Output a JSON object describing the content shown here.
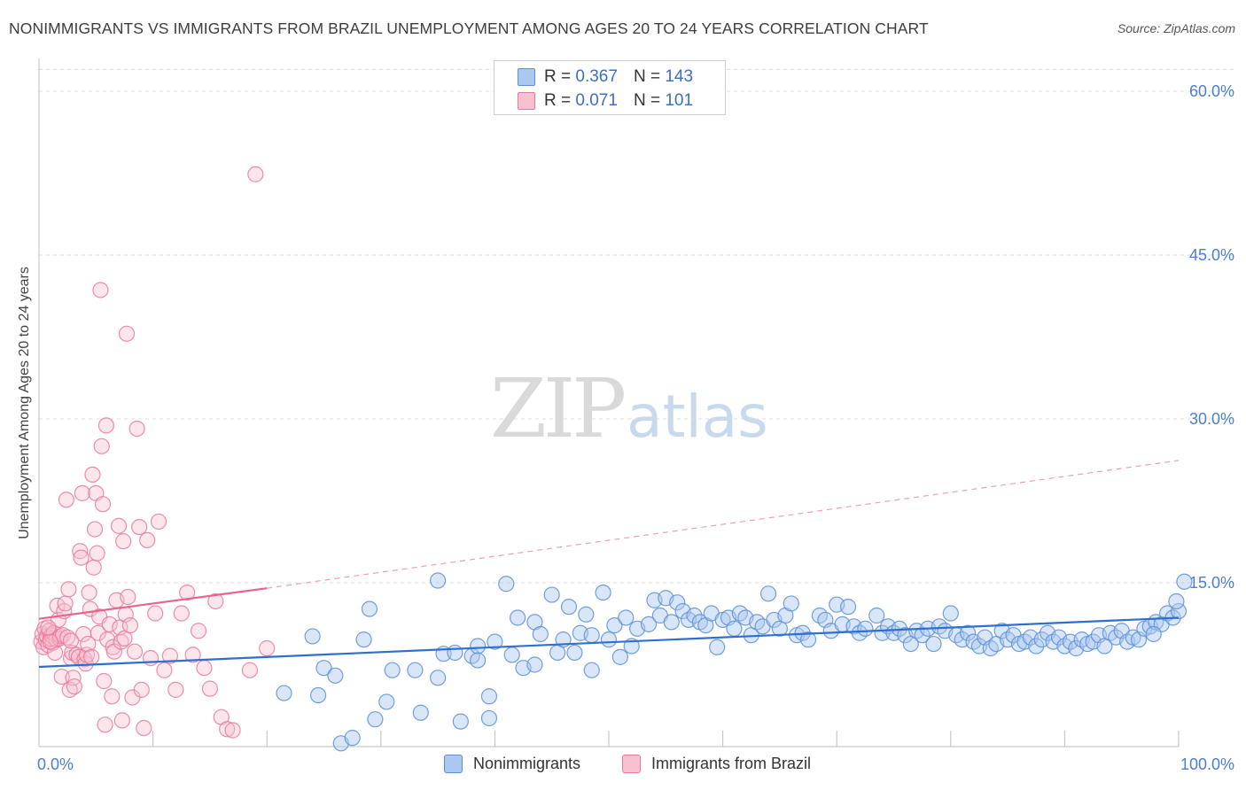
{
  "header": {
    "title": "NONIMMIGRANTS VS IMMIGRANTS FROM BRAZIL UNEMPLOYMENT AMONG AGES 20 TO 24 YEARS CORRELATION CHART",
    "source": "Source: ZipAtlas.com"
  },
  "watermark": {
    "zip": "ZIP",
    "atlas": "atlas"
  },
  "legend": {
    "r_label": "R =",
    "n_label": "N =",
    "entries": [
      {
        "name": "Nonimmigrants",
        "r": "0.367",
        "n": "143",
        "fill": "#aac8f0",
        "stroke": "#5b8fd6"
      },
      {
        "name": "Immigrants from Brazil",
        "r": "0.071",
        "n": "101",
        "fill": "#f7c0d0",
        "stroke": "#e87a9c"
      }
    ]
  },
  "chart_data": {
    "type": "scatter",
    "title": "NONIMMIGRANTS VS IMMIGRANTS FROM BRAZIL UNEMPLOYMENT AMONG AGES 20 TO 24 YEARS CORRELATION CHART",
    "xlabel": "",
    "ylabel": "Unemployment Among Ages 20 to 24 years",
    "xlim": [
      0,
      100
    ],
    "ylim": [
      0,
      63
    ],
    "x_tick_labels": [
      "0.0%",
      "100.0%"
    ],
    "y_ticks": [
      15,
      30,
      45,
      60
    ],
    "y_tick_labels": [
      "15.0%",
      "30.0%",
      "45.0%",
      "60.0%"
    ],
    "grid": true,
    "series": [
      {
        "name": "Nonimmigrants",
        "color": "#5b8fd6",
        "trend": {
          "x0": 0,
          "y0": 7.3,
          "x1": 100,
          "y1": 11.8,
          "style": "solid"
        },
        "points": [
          [
            21.5,
            4.9
          ],
          [
            24.0,
            10.1
          ],
          [
            25.0,
            7.2
          ],
          [
            24.5,
            4.7
          ],
          [
            26.0,
            6.5
          ],
          [
            26.5,
            0.3
          ],
          [
            27.5,
            0.8
          ],
          [
            28.5,
            9.8
          ],
          [
            29.0,
            12.6
          ],
          [
            29.5,
            2.5
          ],
          [
            30.5,
            4.1
          ],
          [
            31.0,
            7.0
          ],
          [
            33.0,
            7.0
          ],
          [
            33.5,
            3.1
          ],
          [
            35.0,
            15.2
          ],
          [
            35.0,
            6.3
          ],
          [
            35.5,
            8.5
          ],
          [
            36.5,
            8.6
          ],
          [
            37.0,
            2.3
          ],
          [
            38.0,
            8.3
          ],
          [
            38.5,
            9.2
          ],
          [
            38.5,
            7.9
          ],
          [
            39.5,
            4.6
          ],
          [
            39.5,
            2.6
          ],
          [
            40.0,
            9.6
          ],
          [
            41.0,
            14.9
          ],
          [
            41.5,
            8.4
          ],
          [
            42.0,
            11.8
          ],
          [
            42.5,
            7.2
          ],
          [
            43.5,
            11.4
          ],
          [
            43.5,
            7.5
          ],
          [
            44.0,
            10.3
          ],
          [
            45.0,
            13.9
          ],
          [
            45.5,
            8.6
          ],
          [
            46.0,
            9.8
          ],
          [
            46.5,
            12.8
          ],
          [
            47.0,
            8.6
          ],
          [
            47.5,
            10.4
          ],
          [
            48.0,
            12.1
          ],
          [
            48.5,
            10.2
          ],
          [
            48.5,
            7.0
          ],
          [
            49.5,
            14.1
          ],
          [
            50.0,
            9.8
          ],
          [
            50.5,
            11.1
          ],
          [
            51.0,
            8.2
          ],
          [
            51.5,
            11.8
          ],
          [
            52.0,
            9.2
          ],
          [
            52.5,
            10.8
          ],
          [
            53.5,
            11.2
          ],
          [
            54.0,
            13.4
          ],
          [
            54.5,
            12.0
          ],
          [
            55.0,
            13.6
          ],
          [
            55.5,
            11.4
          ],
          [
            56.0,
            13.2
          ],
          [
            56.5,
            12.4
          ],
          [
            57.0,
            11.6
          ],
          [
            57.5,
            12.0
          ],
          [
            58.0,
            11.4
          ],
          [
            58.5,
            11.1
          ],
          [
            59.0,
            12.2
          ],
          [
            59.5,
            9.1
          ],
          [
            60.0,
            11.6
          ],
          [
            60.5,
            11.8
          ],
          [
            61.0,
            10.8
          ],
          [
            61.5,
            12.2
          ],
          [
            62.0,
            11.8
          ],
          [
            62.5,
            10.2
          ],
          [
            63.0,
            11.4
          ],
          [
            63.5,
            11.0
          ],
          [
            64.0,
            14.0
          ],
          [
            64.5,
            11.6
          ],
          [
            65.0,
            10.8
          ],
          [
            65.5,
            12.0
          ],
          [
            66.0,
            13.1
          ],
          [
            66.5,
            10.2
          ],
          [
            67.0,
            10.4
          ],
          [
            67.5,
            9.8
          ],
          [
            68.5,
            12.0
          ],
          [
            69.0,
            11.6
          ],
          [
            69.5,
            10.6
          ],
          [
            70.0,
            13.0
          ],
          [
            70.5,
            11.2
          ],
          [
            71.0,
            12.8
          ],
          [
            71.5,
            11.0
          ],
          [
            72.0,
            10.4
          ],
          [
            72.5,
            10.8
          ],
          [
            73.5,
            12.0
          ],
          [
            74.0,
            10.4
          ],
          [
            74.5,
            11.0
          ],
          [
            75.0,
            10.4
          ],
          [
            75.5,
            10.8
          ],
          [
            76.0,
            10.2
          ],
          [
            76.5,
            9.4
          ],
          [
            77.0,
            10.6
          ],
          [
            77.5,
            10.2
          ],
          [
            78.0,
            10.8
          ],
          [
            78.5,
            9.4
          ],
          [
            79.0,
            11.0
          ],
          [
            79.5,
            10.6
          ],
          [
            80.0,
            12.2
          ],
          [
            80.5,
            10.2
          ],
          [
            81.0,
            9.8
          ],
          [
            81.5,
            10.4
          ],
          [
            82.0,
            9.6
          ],
          [
            82.5,
            9.2
          ],
          [
            83.0,
            10.0
          ],
          [
            83.5,
            9.0
          ],
          [
            84.0,
            9.4
          ],
          [
            84.5,
            10.6
          ],
          [
            85.0,
            9.8
          ],
          [
            85.5,
            10.2
          ],
          [
            86.0,
            9.4
          ],
          [
            86.5,
            9.6
          ],
          [
            87.0,
            10.0
          ],
          [
            87.5,
            9.2
          ],
          [
            88.0,
            9.8
          ],
          [
            88.5,
            10.4
          ],
          [
            89.0,
            9.6
          ],
          [
            89.5,
            10.0
          ],
          [
            90.0,
            9.2
          ],
          [
            90.5,
            9.6
          ],
          [
            91.0,
            9.0
          ],
          [
            91.5,
            9.8
          ],
          [
            92.0,
            9.4
          ],
          [
            92.5,
            9.6
          ],
          [
            93.0,
            10.2
          ],
          [
            93.5,
            9.2
          ],
          [
            94.0,
            10.4
          ],
          [
            94.5,
            10.0
          ],
          [
            95.0,
            10.6
          ],
          [
            95.5,
            9.6
          ],
          [
            96.0,
            10.0
          ],
          [
            96.5,
            9.8
          ],
          [
            97.0,
            10.8
          ],
          [
            97.5,
            11.0
          ],
          [
            98.0,
            11.4
          ],
          [
            98.5,
            11.2
          ],
          [
            99.0,
            12.2
          ],
          [
            99.5,
            11.8
          ],
          [
            100.0,
            12.4
          ],
          [
            99.8,
            13.3
          ],
          [
            100.5,
            15.1
          ],
          [
            97.8,
            10.3
          ]
        ]
      },
      {
        "name": "Immigrants from Brazil",
        "color": "#e87a9c",
        "trend": {
          "x0": 0,
          "y0": 11.7,
          "x1": 20,
          "y1": 14.5,
          "x2": 100,
          "y2": 26.2,
          "style": "solid-then-dashed"
        },
        "points": [
          [
            0.2,
            9.6
          ],
          [
            0.3,
            10.3
          ],
          [
            0.4,
            9.1
          ],
          [
            0.5,
            10.8
          ],
          [
            0.6,
            9.8
          ],
          [
            0.7,
            10.1
          ],
          [
            0.8,
            9.3
          ],
          [
            0.9,
            10.6
          ],
          [
            1.0,
            9.9
          ],
          [
            1.1,
            10.2
          ],
          [
            1.2,
            9.5
          ],
          [
            1.3,
            10.4
          ],
          [
            1.4,
            8.6
          ],
          [
            1.5,
            9.8
          ],
          [
            1.6,
            12.9
          ],
          [
            1.7,
            11.6
          ],
          [
            1.8,
            9.9
          ],
          [
            1.9,
            10.1
          ],
          [
            2.0,
            6.4
          ],
          [
            2.1,
            10.2
          ],
          [
            2.2,
            12.4
          ],
          [
            2.3,
            13.1
          ],
          [
            2.4,
            22.6
          ],
          [
            2.5,
            10.0
          ],
          [
            2.6,
            14.4
          ],
          [
            2.7,
            5.2
          ],
          [
            2.8,
            8.1
          ],
          [
            2.9,
            8.6
          ],
          [
            3.0,
            6.3
          ],
          [
            3.1,
            5.5
          ],
          [
            3.3,
            8.4
          ],
          [
            3.5,
            8.2
          ],
          [
            3.6,
            17.9
          ],
          [
            3.7,
            17.3
          ],
          [
            3.8,
            23.2
          ],
          [
            3.9,
            10.3
          ],
          [
            4.0,
            8.0
          ],
          [
            4.1,
            7.6
          ],
          [
            4.2,
            8.4
          ],
          [
            4.3,
            9.4
          ],
          [
            4.4,
            14.1
          ],
          [
            4.5,
            12.6
          ],
          [
            4.6,
            8.2
          ],
          [
            4.7,
            24.9
          ],
          [
            4.8,
            16.4
          ],
          [
            4.9,
            19.9
          ],
          [
            5.0,
            23.2
          ],
          [
            5.1,
            17.7
          ],
          [
            5.2,
            10.4
          ],
          [
            5.3,
            11.9
          ],
          [
            5.4,
            41.8
          ],
          [
            5.5,
            27.5
          ],
          [
            5.6,
            22.2
          ],
          [
            5.7,
            6.0
          ],
          [
            5.8,
            2.0
          ],
          [
            5.9,
            29.4
          ],
          [
            6.0,
            9.8
          ],
          [
            6.2,
            11.2
          ],
          [
            6.4,
            4.6
          ],
          [
            6.5,
            9.1
          ],
          [
            6.6,
            8.7
          ],
          [
            6.8,
            13.4
          ],
          [
            7.0,
            20.2
          ],
          [
            7.1,
            10.9
          ],
          [
            7.2,
            9.6
          ],
          [
            7.3,
            2.4
          ],
          [
            7.4,
            18.8
          ],
          [
            7.5,
            9.9
          ],
          [
            7.6,
            12.1
          ],
          [
            7.7,
            37.8
          ],
          [
            7.8,
            13.7
          ],
          [
            8.0,
            11.1
          ],
          [
            8.2,
            4.5
          ],
          [
            8.4,
            8.7
          ],
          [
            8.6,
            29.1
          ],
          [
            8.8,
            20.1
          ],
          [
            9.0,
            5.2
          ],
          [
            9.2,
            1.7
          ],
          [
            9.5,
            18.9
          ],
          [
            9.8,
            8.1
          ],
          [
            10.2,
            12.2
          ],
          [
            10.5,
            20.6
          ],
          [
            11.0,
            7.0
          ],
          [
            11.5,
            8.3
          ],
          [
            12.0,
            5.2
          ],
          [
            12.5,
            12.2
          ],
          [
            13.0,
            14.1
          ],
          [
            13.5,
            8.4
          ],
          [
            14.0,
            10.6
          ],
          [
            14.5,
            7.2
          ],
          [
            15.0,
            5.3
          ],
          [
            15.5,
            13.3
          ],
          [
            16.0,
            2.7
          ],
          [
            16.5,
            1.6
          ],
          [
            17.0,
            1.5
          ],
          [
            18.5,
            7.0
          ],
          [
            19.0,
            52.4
          ],
          [
            20.0,
            9.0
          ],
          [
            1.0,
            9.6
          ],
          [
            0.8,
            10.9
          ],
          [
            2.8,
            9.7
          ]
        ]
      }
    ]
  }
}
